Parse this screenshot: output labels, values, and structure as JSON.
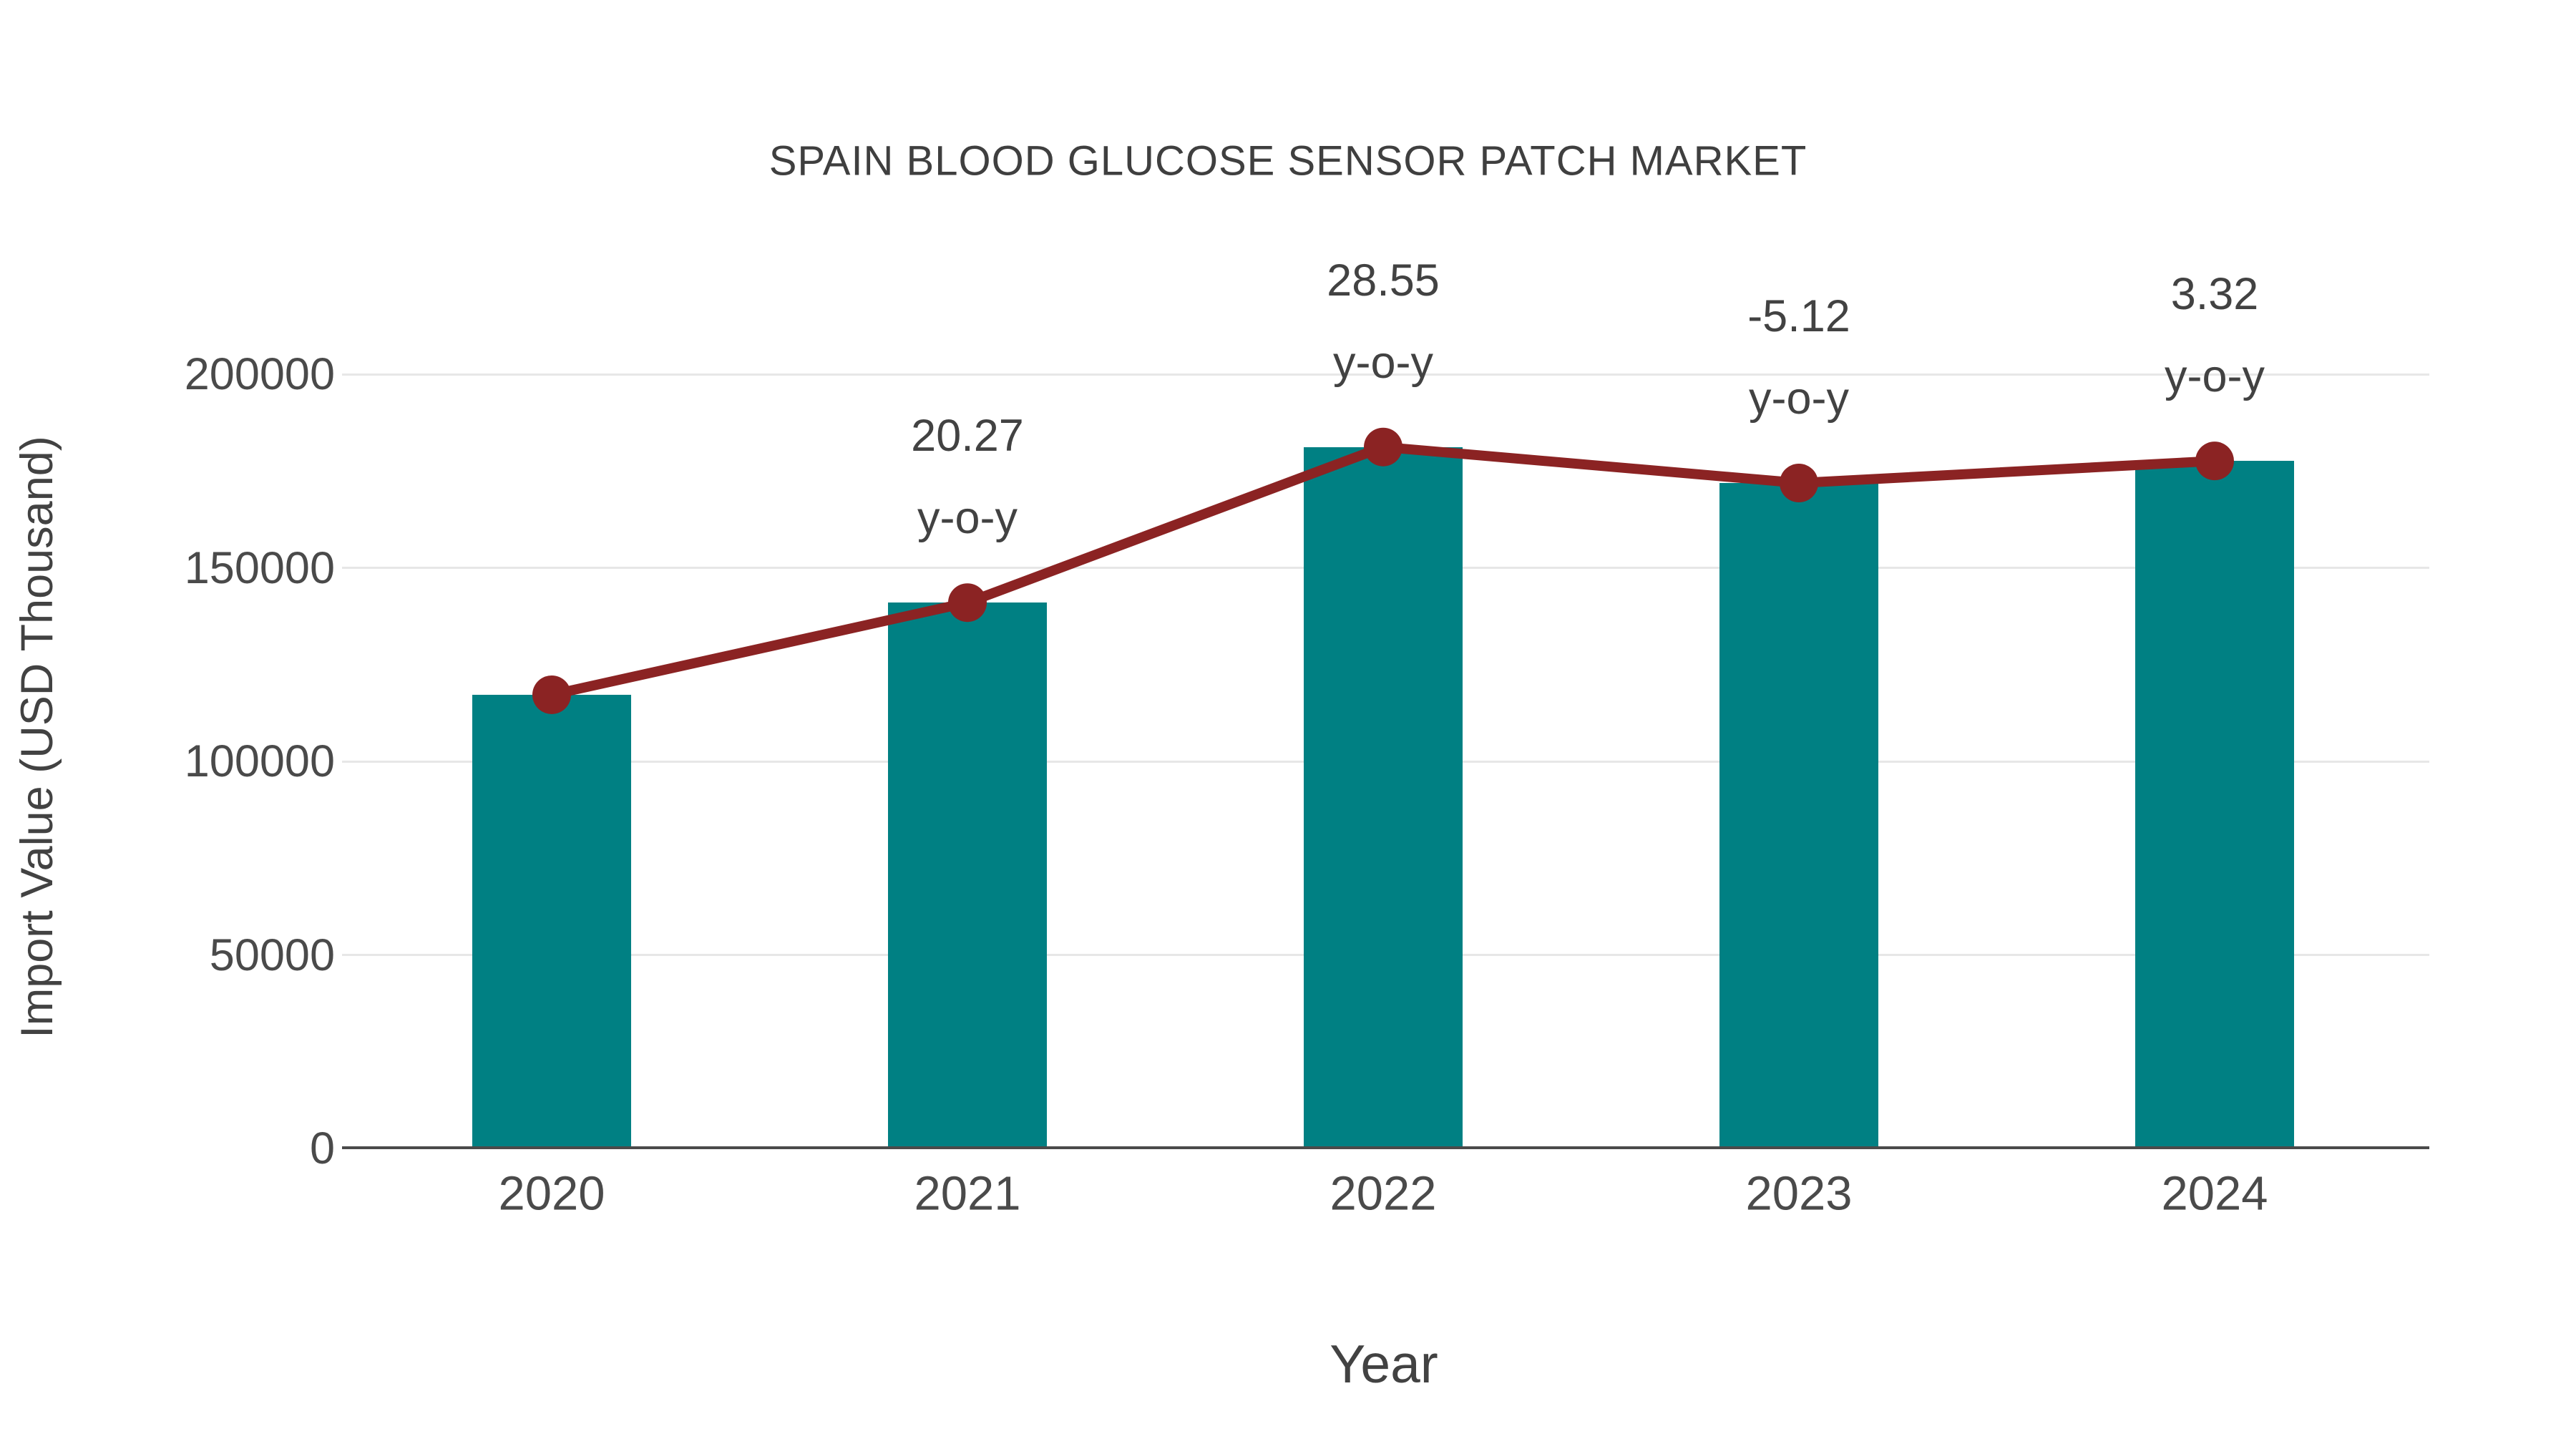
{
  "chart_data": {
    "type": "bar",
    "title": "SPAIN BLOOD GLUCOSE SENSOR PATCH MARKET",
    "xlabel": "Year",
    "ylabel": "Import Value (USD Thousand)",
    "categories": [
      "2020",
      "2021",
      "2022",
      "2023",
      "2024"
    ],
    "series": [
      {
        "name": "Import Value (USD Thousand)",
        "type": "bar",
        "values": [
          117200,
          141000,
          181200,
          171900,
          177600
        ]
      },
      {
        "name": "y-o-y growth",
        "type": "line",
        "values": [
          117200,
          141000,
          181200,
          171900,
          177600
        ],
        "point_labels": [
          "",
          "20.27",
          "28.55",
          "-5.12",
          "3.32"
        ],
        "point_label_suffix": "y-o-y"
      }
    ],
    "y_ticks": [
      0,
      50000,
      100000,
      150000,
      200000
    ],
    "y_tick_labels": [
      "0",
      "50000",
      "100000",
      "150000",
      "200000"
    ],
    "ylim": [
      0,
      220000
    ],
    "grid": "horizontal",
    "legend": "none",
    "colors": {
      "bar": "#008083",
      "line": "#8B2323",
      "marker": "#8B2323",
      "gridline": "#e7e7e7",
      "axis": "#4a4a4a",
      "text": "#424242"
    }
  }
}
